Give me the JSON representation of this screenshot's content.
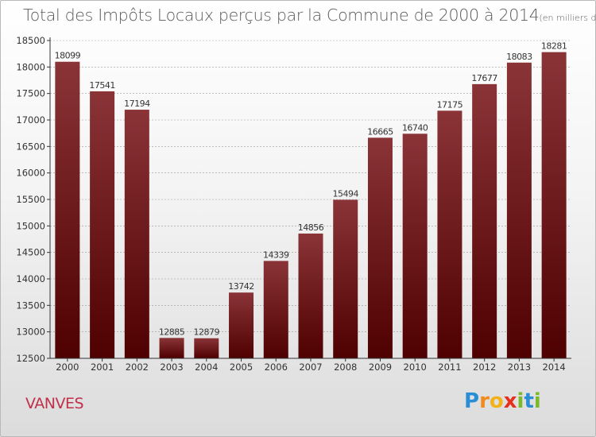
{
  "title": "Total des Impôts Locaux perçus par la Commune de 2000 à 2014",
  "unit_note": "(en milliers d'€)",
  "commune": "VANVES",
  "brand": {
    "letters": [
      "P",
      "r",
      "o",
      "x",
      "i",
      "t",
      "i"
    ],
    "colors": [
      "#2a8ed6",
      "#f08a1c",
      "#f2b21a",
      "#e6301e",
      "#7ab92a",
      "#2a8ed6",
      "#7ab92a"
    ]
  },
  "colors": {
    "bar_top": "#8a3438",
    "bar_bottom": "#4f0000",
    "axis": "#333333",
    "grid": "#999999"
  },
  "chart_data": {
    "type": "bar",
    "title": "Total des Impôts Locaux perçus par la Commune de 2000 à 2014",
    "xlabel": "",
    "ylabel": "",
    "categories": [
      "2000",
      "2001",
      "2002",
      "2003",
      "2004",
      "2005",
      "2006",
      "2007",
      "2008",
      "2009",
      "2010",
      "2011",
      "2012",
      "2013",
      "2014"
    ],
    "values": [
      18099,
      17541,
      17194,
      12885,
      12879,
      13742,
      14339,
      14856,
      15494,
      16665,
      16740,
      17175,
      17677,
      18083,
      18281
    ],
    "ylim": [
      12500,
      18500
    ],
    "yticks": [
      12500,
      13000,
      13500,
      14000,
      14500,
      15000,
      15500,
      16000,
      16500,
      17000,
      17500,
      18000,
      18500
    ],
    "grid": true
  }
}
